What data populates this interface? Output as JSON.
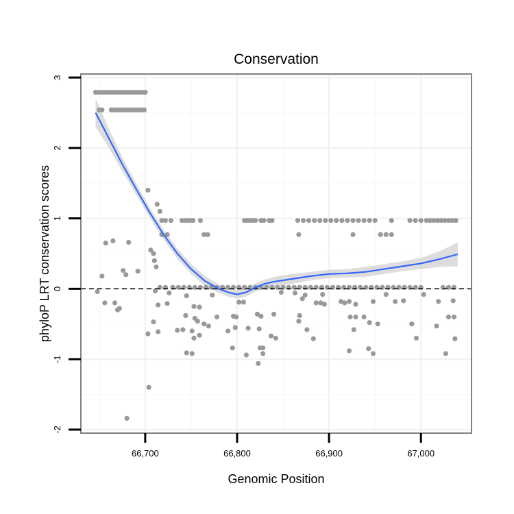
{
  "chart_data": {
    "type": "scatter",
    "title": "Conservation",
    "xlabel": "Genomic Position",
    "ylabel": "phyloP LRT conservation scores",
    "xlim": [
      66630,
      67055
    ],
    "ylim": [
      -2.05,
      3.05
    ],
    "x_ticks": [
      {
        "value": 66700,
        "label": "66,700"
      },
      {
        "value": 66800,
        "label": "66,800"
      },
      {
        "value": 66900,
        "label": "66,900"
      },
      {
        "value": 67000,
        "label": "67,000"
      }
    ],
    "y_ticks": [
      {
        "value": -2,
        "label": "-2"
      },
      {
        "value": -1,
        "label": "-1"
      },
      {
        "value": 0,
        "label": "0"
      },
      {
        "value": 1,
        "label": "1"
      },
      {
        "value": 2,
        "label": "2"
      },
      {
        "value": 3,
        "label": "3"
      }
    ],
    "reference_line": {
      "y": 0,
      "style": "dashed"
    },
    "grid": true,
    "points_color": "#999999",
    "smooth_color": "#3366FF",
    "ribbon_color": "#D9D9D9",
    "panel_border_color": "#808080",
    "points": [
      [
        66646,
        2.79
      ],
      [
        66649,
        2.79
      ],
      [
        66652,
        2.79
      ],
      [
        66655,
        2.79
      ],
      [
        66658,
        2.79
      ],
      [
        66661,
        2.79
      ],
      [
        66664,
        2.79
      ],
      [
        66667,
        2.79
      ],
      [
        66670,
        2.79
      ],
      [
        66673,
        2.79
      ],
      [
        66676,
        2.79
      ],
      [
        66679,
        2.79
      ],
      [
        66682,
        2.79
      ],
      [
        66685,
        2.79
      ],
      [
        66688,
        2.79
      ],
      [
        66691,
        2.79
      ],
      [
        66694,
        2.79
      ],
      [
        66697,
        2.79
      ],
      [
        66700,
        2.79
      ],
      [
        66650,
        2.54
      ],
      [
        66653,
        2.54
      ],
      [
        66663,
        2.54
      ],
      [
        66666,
        2.54
      ],
      [
        66669,
        2.54
      ],
      [
        66672,
        2.54
      ],
      [
        66675,
        2.54
      ],
      [
        66678,
        2.54
      ],
      [
        66681,
        2.54
      ],
      [
        66684,
        2.54
      ],
      [
        66687,
        2.54
      ],
      [
        66690,
        2.54
      ],
      [
        66693,
        2.54
      ],
      [
        66696,
        2.54
      ],
      [
        66699,
        2.54
      ],
      [
        66703,
        1.4
      ],
      [
        66713,
        1.2
      ],
      [
        66716,
        1.1
      ],
      [
        66718,
        0.97
      ],
      [
        66722,
        0.97
      ],
      [
        66728,
        0.97
      ],
      [
        66740,
        0.97
      ],
      [
        66743,
        0.97
      ],
      [
        66746,
        0.97
      ],
      [
        66749,
        0.97
      ],
      [
        66752,
        0.97
      ],
      [
        66760,
        0.97
      ],
      [
        66808,
        0.97
      ],
      [
        66811,
        0.97
      ],
      [
        66814,
        0.97
      ],
      [
        66817,
        0.97
      ],
      [
        66820,
        0.97
      ],
      [
        66826,
        0.97
      ],
      [
        66829,
        0.97
      ],
      [
        66835,
        0.97
      ],
      [
        66838,
        0.97
      ],
      [
        66866,
        0.97
      ],
      [
        66872,
        0.97
      ],
      [
        66878,
        0.97
      ],
      [
        66884,
        0.97
      ],
      [
        66890,
        0.97
      ],
      [
        66896,
        0.97
      ],
      [
        66902,
        0.97
      ],
      [
        66908,
        0.97
      ],
      [
        66914,
        0.97
      ],
      [
        66920,
        0.97
      ],
      [
        66926,
        0.97
      ],
      [
        66932,
        0.97
      ],
      [
        66938,
        0.97
      ],
      [
        66944,
        0.97
      ],
      [
        66950,
        0.97
      ],
      [
        66968,
        0.97
      ],
      [
        66988,
        0.97
      ],
      [
        66994,
        0.97
      ],
      [
        67000,
        0.97
      ],
      [
        67006,
        0.97
      ],
      [
        67010,
        0.97
      ],
      [
        67014,
        0.97
      ],
      [
        67018,
        0.97
      ],
      [
        67022,
        0.97
      ],
      [
        67026,
        0.97
      ],
      [
        67030,
        0.97
      ],
      [
        67034,
        0.97
      ],
      [
        67038,
        0.97
      ],
      [
        66718,
        0.77
      ],
      [
        66724,
        0.77
      ],
      [
        66764,
        0.77
      ],
      [
        66768,
        0.77
      ],
      [
        66867,
        0.77
      ],
      [
        66926,
        0.77
      ],
      [
        66956,
        0.77
      ],
      [
        66962,
        0.77
      ],
      [
        66968,
        0.77
      ],
      [
        66657,
        0.65
      ],
      [
        66665,
        0.68
      ],
      [
        66682,
        0.66
      ],
      [
        66706,
        0.55
      ],
      [
        66709,
        0.5
      ],
      [
        66710,
        0.4
      ],
      [
        66712,
        0.31
      ],
      [
        66676,
        0.26
      ],
      [
        66692,
        0.25
      ],
      [
        66679,
        0.2
      ],
      [
        66653,
        0.18
      ],
      [
        66716,
        0.02
      ],
      [
        66722,
        0.02
      ],
      [
        66730,
        0.02
      ],
      [
        66736,
        0.02
      ],
      [
        66742,
        0.02
      ],
      [
        66748,
        0.02
      ],
      [
        66754,
        0.02
      ],
      [
        66760,
        0.02
      ],
      [
        66766,
        0.02
      ],
      [
        66772,
        0.02
      ],
      [
        66778,
        0.02
      ],
      [
        66784,
        0.02
      ],
      [
        66790,
        0.02
      ],
      [
        66796,
        0.02
      ],
      [
        66802,
        0.02
      ],
      [
        66808,
        0.02
      ],
      [
        66814,
        0.02
      ],
      [
        66820,
        0.02
      ],
      [
        66826,
        0.02
      ],
      [
        66832,
        0.02
      ],
      [
        66838,
        0.02
      ],
      [
        66844,
        0.02
      ],
      [
        66850,
        0.02
      ],
      [
        66856,
        0.02
      ],
      [
        66862,
        0.02
      ],
      [
        66868,
        0.02
      ],
      [
        66874,
        0.02
      ],
      [
        66880,
        0.02
      ],
      [
        66886,
        0.02
      ],
      [
        66892,
        0.02
      ],
      [
        66898,
        0.02
      ],
      [
        66904,
        0.02
      ],
      [
        66910,
        0.02
      ],
      [
        66916,
        0.02
      ],
      [
        66922,
        0.02
      ],
      [
        66928,
        0.02
      ],
      [
        66934,
        0.02
      ],
      [
        66940,
        0.02
      ],
      [
        66946,
        0.02
      ],
      [
        66952,
        0.02
      ],
      [
        66958,
        0.02
      ],
      [
        66964,
        0.02
      ],
      [
        66970,
        0.02
      ],
      [
        66976,
        0.02
      ],
      [
        66982,
        0.02
      ],
      [
        66988,
        0.02
      ],
      [
        66994,
        0.02
      ],
      [
        67000,
        0.02
      ],
      [
        67024,
        0.02
      ],
      [
        67030,
        0.02
      ],
      [
        67036,
        0.02
      ],
      [
        66648,
        -0.04
      ],
      [
        66711,
        -0.03
      ],
      [
        66726,
        -0.06
      ],
      [
        66745,
        -0.1
      ],
      [
        66773,
        -0.09
      ],
      [
        66848,
        -0.05
      ],
      [
        66863,
        -0.06
      ],
      [
        66874,
        -0.09
      ],
      [
        66893,
        -0.08
      ],
      [
        66962,
        -0.08
      ],
      [
        67003,
        -0.08
      ],
      [
        66656,
        -0.2
      ],
      [
        66667,
        -0.2
      ],
      [
        66670,
        -0.3
      ],
      [
        66672,
        -0.28
      ],
      [
        66714,
        -0.23
      ],
      [
        66724,
        -0.21
      ],
      [
        66753,
        -0.25
      ],
      [
        66759,
        -0.26
      ],
      [
        66802,
        -0.19
      ],
      [
        66807,
        -0.19
      ],
      [
        66871,
        -0.14
      ],
      [
        66886,
        -0.2
      ],
      [
        66891,
        -0.2
      ],
      [
        66895,
        -0.22
      ],
      [
        66913,
        -0.18
      ],
      [
        66917,
        -0.2
      ],
      [
        66922,
        -0.18
      ],
      [
        66929,
        -0.22
      ],
      [
        66948,
        -0.18
      ],
      [
        66972,
        -0.18
      ],
      [
        66981,
        -0.17
      ],
      [
        67019,
        -0.18
      ],
      [
        67035,
        -0.17
      ],
      [
        66744,
        -0.38
      ],
      [
        66754,
        -0.42
      ],
      [
        66757,
        -0.46
      ],
      [
        66778,
        -0.4
      ],
      [
        66796,
        -0.39
      ],
      [
        66799,
        -0.4
      ],
      [
        66822,
        -0.36
      ],
      [
        66826,
        -0.39
      ],
      [
        66840,
        -0.36
      ],
      [
        66868,
        -0.38
      ],
      [
        66923,
        -0.4
      ],
      [
        66929,
        -0.4
      ],
      [
        66938,
        -0.4
      ],
      [
        67030,
        -0.4
      ],
      [
        67036,
        -0.4
      ],
      [
        66709,
        -0.47
      ],
      [
        66764,
        -0.5
      ],
      [
        66769,
        -0.53
      ],
      [
        66798,
        -0.55
      ],
      [
        66812,
        -0.56
      ],
      [
        66824,
        -0.57
      ],
      [
        66867,
        -0.46
      ],
      [
        66876,
        -0.58
      ],
      [
        66927,
        -0.58
      ],
      [
        66944,
        -0.48
      ],
      [
        66953,
        -0.5
      ],
      [
        66990,
        -0.5
      ],
      [
        67017,
        -0.53
      ],
      [
        66735,
        -0.59
      ],
      [
        66741,
        -0.58
      ],
      [
        66751,
        -0.6
      ],
      [
        66753,
        -0.7
      ],
      [
        66759,
        -0.66
      ],
      [
        66790,
        -0.6
      ],
      [
        66703,
        -0.64
      ],
      [
        66714,
        -0.61
      ],
      [
        66837,
        -0.67
      ],
      [
        66842,
        -0.7
      ],
      [
        66883,
        -0.71
      ],
      [
        66995,
        -0.7
      ],
      [
        67037,
        -0.71
      ],
      [
        66745,
        -0.91
      ],
      [
        66751,
        -0.92
      ],
      [
        66795,
        -0.84
      ],
      [
        66810,
        -0.94
      ],
      [
        66825,
        -0.84
      ],
      [
        66828,
        -0.92
      ],
      [
        66828,
        -0.84
      ],
      [
        66922,
        -0.88
      ],
      [
        66943,
        -0.85
      ],
      [
        66948,
        -0.92
      ],
      [
        67027,
        -0.92
      ],
      [
        66823,
        -1.06
      ],
      [
        66704,
        -1.4
      ],
      [
        66680,
        -1.84
      ]
    ],
    "smooth": [
      [
        66646,
        2.5
      ],
      [
        66660,
        2.15
      ],
      [
        66675,
        1.77
      ],
      [
        66690,
        1.42
      ],
      [
        66705,
        1.08
      ],
      [
        66720,
        0.77
      ],
      [
        66735,
        0.5
      ],
      [
        66750,
        0.28
      ],
      [
        66765,
        0.11
      ],
      [
        66780,
        0.0
      ],
      [
        66790,
        -0.05
      ],
      [
        66800,
        -0.08
      ],
      [
        66810,
        -0.05
      ],
      [
        66820,
        0.02
      ],
      [
        66830,
        0.07
      ],
      [
        66840,
        0.1
      ],
      [
        66860,
        0.14
      ],
      [
        66880,
        0.18
      ],
      [
        66900,
        0.21
      ],
      [
        66920,
        0.22
      ],
      [
        66940,
        0.24
      ],
      [
        66960,
        0.28
      ],
      [
        66980,
        0.32
      ],
      [
        67000,
        0.36
      ],
      [
        67020,
        0.42
      ],
      [
        67040,
        0.49
      ]
    ],
    "ribbon_halfwidth": [
      0.2,
      0.14,
      0.1,
      0.08,
      0.07,
      0.07,
      0.07,
      0.07,
      0.07,
      0.06,
      0.06,
      0.06,
      0.06,
      0.06,
      0.06,
      0.07,
      0.07,
      0.06,
      0.06,
      0.06,
      0.07,
      0.07,
      0.07,
      0.08,
      0.11,
      0.17
    ]
  }
}
